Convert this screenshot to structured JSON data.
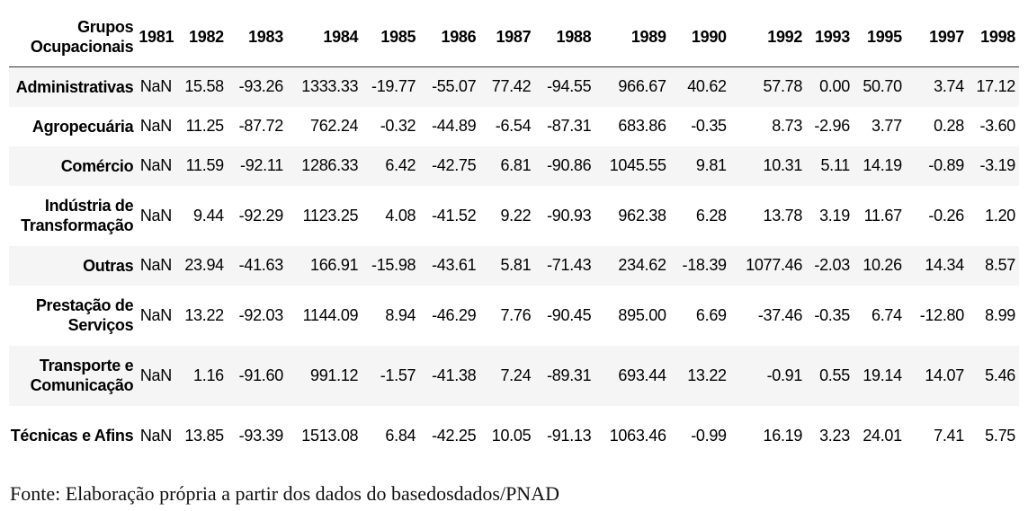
{
  "table": {
    "header_label": "Grupos Ocupacionais",
    "years": [
      "1981",
      "1982",
      "1983",
      "1984",
      "1985",
      "1986",
      "1987",
      "1988",
      "1989",
      "1990",
      "1992",
      "1993",
      "1995",
      "1997",
      "1998"
    ],
    "rows": [
      {
        "group": "Administrativas",
        "values": [
          "NaN",
          "15.58",
          "-93.26",
          "1333.33",
          "-19.77",
          "-55.07",
          "77.42",
          "-94.55",
          "966.67",
          "40.62",
          "57.78",
          "0.00",
          "50.70",
          "3.74",
          "17.12"
        ]
      },
      {
        "group": "Agropecuária",
        "values": [
          "NaN",
          "11.25",
          "-87.72",
          "762.24",
          "-0.32",
          "-44.89",
          "-6.54",
          "-87.31",
          "683.86",
          "-0.35",
          "8.73",
          "-2.96",
          "3.77",
          "0.28",
          "-3.60"
        ]
      },
      {
        "group": "Comércio",
        "values": [
          "NaN",
          "11.59",
          "-92.11",
          "1286.33",
          "6.42",
          "-42.75",
          "6.81",
          "-90.86",
          "1045.55",
          "9.81",
          "10.31",
          "5.11",
          "14.19",
          "-0.89",
          "-3.19"
        ]
      },
      {
        "group": "Indústria de Transformação",
        "values": [
          "NaN",
          "9.44",
          "-92.29",
          "1123.25",
          "4.08",
          "-41.52",
          "9.22",
          "-90.93",
          "962.38",
          "6.28",
          "13.78",
          "3.19",
          "11.67",
          "-0.26",
          "1.20"
        ]
      },
      {
        "group": "Outras",
        "values": [
          "NaN",
          "23.94",
          "-41.63",
          "166.91",
          "-15.98",
          "-43.61",
          "5.81",
          "-71.43",
          "234.62",
          "-18.39",
          "1077.46",
          "-2.03",
          "10.26",
          "14.34",
          "8.57"
        ]
      },
      {
        "group": "Prestação de Serviços",
        "values": [
          "NaN",
          "13.22",
          "-92.03",
          "1144.09",
          "8.94",
          "-46.29",
          "7.76",
          "-90.45",
          "895.00",
          "6.69",
          "-37.46",
          "-0.35",
          "6.74",
          "-12.80",
          "8.99"
        ]
      },
      {
        "group": "Transporte e Comunicação",
        "values": [
          "NaN",
          "1.16",
          "-91.60",
          "991.12",
          "-1.57",
          "-41.38",
          "7.24",
          "-89.31",
          "693.44",
          "13.22",
          "-0.91",
          "0.55",
          "19.14",
          "14.07",
          "5.46"
        ]
      },
      {
        "group": "Técnicas e Afins",
        "values": [
          "NaN",
          "13.85",
          "-93.39",
          "1513.08",
          "6.84",
          "-42.25",
          "10.05",
          "-91.13",
          "1063.46",
          "-0.99",
          "16.19",
          "3.23",
          "24.01",
          "7.41",
          "5.75"
        ]
      }
    ]
  },
  "caption": "Fonte: Elaboração própria a partir dos dados do basedosdados/PNAD"
}
